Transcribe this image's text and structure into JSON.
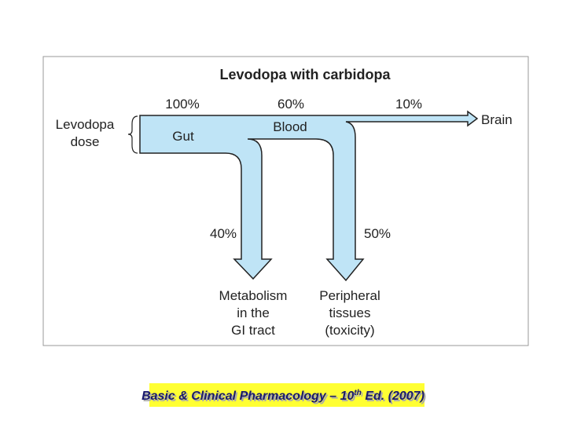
{
  "title": "Levodopa with carbidopa",
  "source": {
    "label": "Levodopa\ndose"
  },
  "flows": [
    {
      "percent": "100%",
      "label": "Gut"
    },
    {
      "percent": "60%",
      "label": "Blood"
    },
    {
      "percent": "10%",
      "label": "Brain"
    },
    {
      "percent": "40%",
      "label": "Metabolism\nin the\nGI tract"
    },
    {
      "percent": "50%",
      "label": "Peripheral\ntissues\n(toxicity)"
    }
  ],
  "citation": {
    "main": "Basic & Clinical Pharmacology – 10",
    "sup": "th",
    "rest": " Ed. (2007)"
  }
}
